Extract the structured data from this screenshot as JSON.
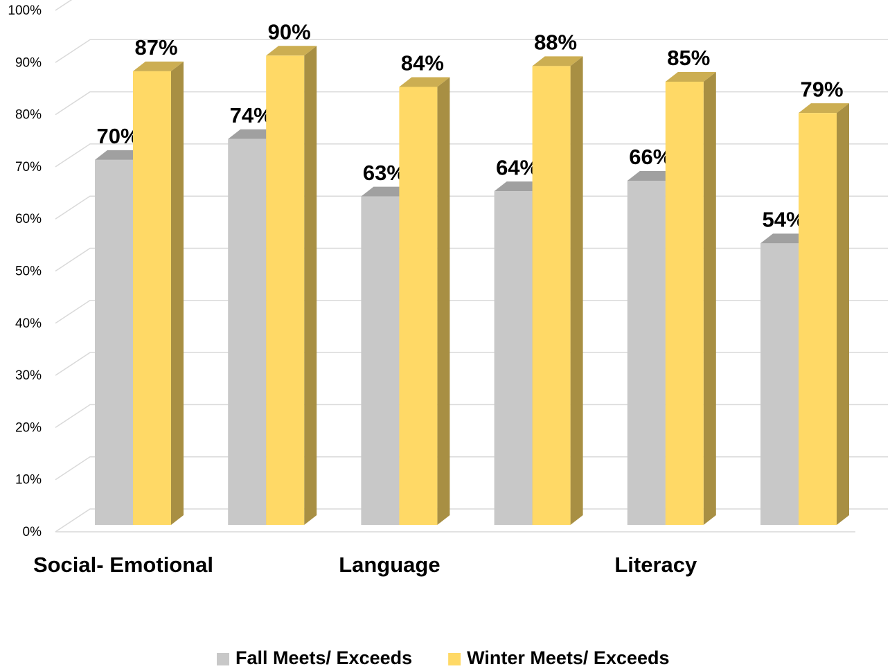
{
  "chart_data": {
    "type": "bar3d",
    "categories": [
      "Social- Emotional",
      null,
      "Language",
      null,
      "Literacy",
      null
    ],
    "series": [
      {
        "name": "Fall Meets/ Exceeds",
        "color": "#c8c8c8",
        "values": [
          70,
          74,
          63,
          64,
          66,
          54
        ],
        "value_labels": [
          "70%",
          "74%",
          "63%",
          "64%",
          "66%",
          "54%"
        ]
      },
      {
        "name": "Winter Meets/ Exceeds",
        "color": "#ffd966",
        "values": [
          87,
          90,
          84,
          88,
          85,
          79
        ],
        "value_labels": [
          "87%",
          "90%",
          "84%",
          "88%",
          "85%",
          "79%"
        ]
      }
    ],
    "ylim": [
      0,
      100
    ],
    "yticks": [
      {
        "value": 0,
        "label": "0%"
      },
      {
        "value": 10,
        "label": "10%"
      },
      {
        "value": 20,
        "label": "20%"
      },
      {
        "value": 30,
        "label": "30%"
      },
      {
        "value": 40,
        "label": "40%"
      },
      {
        "value": 50,
        "label": "50%"
      },
      {
        "value": 60,
        "label": "60%"
      },
      {
        "value": 70,
        "label": "70%"
      },
      {
        "value": 80,
        "label": "80%"
      },
      {
        "value": 90,
        "label": "90%"
      },
      {
        "value": 100,
        "label": "100%"
      }
    ],
    "grid": true,
    "legend": "bottom"
  }
}
